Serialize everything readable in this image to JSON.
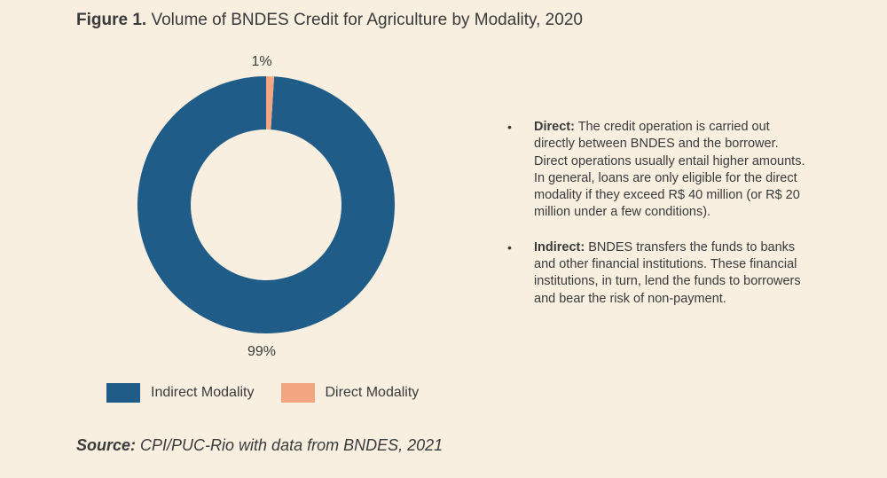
{
  "figure": {
    "label": "Figure 1.",
    "title": "Volume of BNDES Credit for Agriculture by Modality, 2020"
  },
  "chart_data": {
    "type": "pie",
    "style": "donut",
    "categories": [
      "Indirect Modality",
      "Direct Modality"
    ],
    "values": [
      99,
      1
    ],
    "data_labels": [
      "99%",
      "1%"
    ],
    "colors": [
      "#1f5c88",
      "#f4a683"
    ],
    "legend_position": "bottom"
  },
  "notes": [
    {
      "term": "Direct:",
      "text": " The credit operation is carried out directly between BNDES and the borrower. Direct operations usually entail higher amounts. In general, loans are only eligible for the direct modality if they exceed R$ 40 million (or R$ 20 million under a few conditions)."
    },
    {
      "term": "Indirect:",
      "text": " BNDES transfers the funds to banks and other financial institutions. These financial institutions, in turn, lend the funds to borrowers and bear the risk of non-payment."
    }
  ],
  "bullet_char": "•",
  "source": {
    "label": "Source:",
    "text": " CPI/PUC-Rio with data from BNDES, 2021"
  }
}
